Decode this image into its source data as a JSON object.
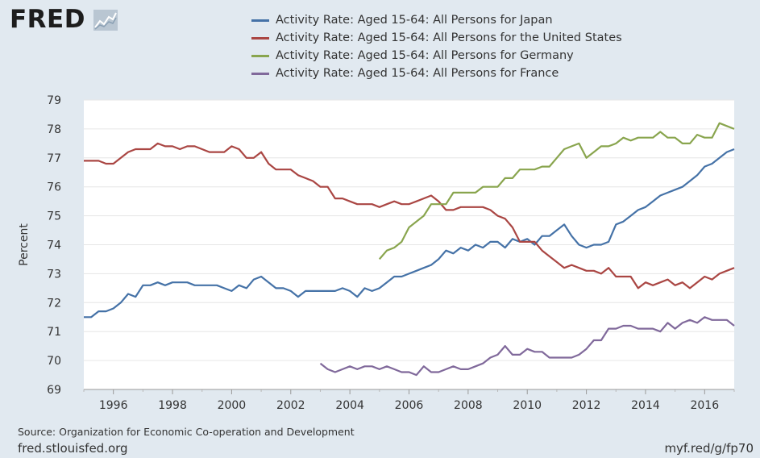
{
  "brand": {
    "name": "FRED",
    "icon": "line-chart-icon"
  },
  "footer": {
    "source": "Source: Organization for Economic Co-operation and Development",
    "site": "fred.stlouisfed.org",
    "shortlink": "myf.red/g/fp70"
  },
  "chart_data": {
    "type": "line",
    "title": "",
    "xlabel": "",
    "ylabel": "Percent",
    "xlim": [
      1995.0,
      2017.0
    ],
    "ylim": [
      69,
      79
    ],
    "yticks": [
      69,
      70,
      71,
      72,
      73,
      74,
      75,
      76,
      77,
      78,
      79
    ],
    "xticks": [
      1996,
      1998,
      2000,
      2002,
      2004,
      2006,
      2008,
      2010,
      2012,
      2014,
      2016
    ],
    "grid": true,
    "legend_position": "top",
    "series": [
      {
        "name": "Activity Rate: Aged 15-64: All Persons for Japan",
        "color": "#4572a7",
        "start": 1995.0,
        "step": 0.25,
        "values": [
          71.5,
          71.5,
          71.7,
          71.7,
          71.8,
          72.0,
          72.3,
          72.2,
          72.6,
          72.6,
          72.7,
          72.6,
          72.7,
          72.7,
          72.7,
          72.6,
          72.6,
          72.6,
          72.6,
          72.5,
          72.4,
          72.6,
          72.5,
          72.8,
          72.9,
          72.7,
          72.5,
          72.5,
          72.4,
          72.2,
          72.4,
          72.4,
          72.4,
          72.4,
          72.4,
          72.5,
          72.4,
          72.2,
          72.5,
          72.4,
          72.5,
          72.7,
          72.9,
          72.9,
          73.0,
          73.1,
          73.2,
          73.3,
          73.5,
          73.8,
          73.7,
          73.9,
          73.8,
          74.0,
          73.9,
          74.1,
          74.1,
          73.9,
          74.2,
          74.1,
          74.2,
          74.0,
          74.3,
          74.3,
          74.5,
          74.7,
          74.3,
          74.0,
          73.9,
          74.0,
          74.0,
          74.1,
          74.7,
          74.8,
          75.0,
          75.2,
          75.3,
          75.5,
          75.7,
          75.8,
          75.9,
          76.0,
          76.2,
          76.4,
          76.7,
          76.8,
          77.0,
          77.2,
          77.3
        ]
      },
      {
        "name": "Activity Rate: Aged 15-64: All Persons for the United States",
        "color": "#aa4643",
        "start": 1995.0,
        "step": 0.25,
        "values": [
          76.9,
          76.9,
          76.9,
          76.8,
          76.8,
          77.0,
          77.2,
          77.3,
          77.3,
          77.3,
          77.5,
          77.4,
          77.4,
          77.3,
          77.4,
          77.4,
          77.3,
          77.2,
          77.2,
          77.2,
          77.4,
          77.3,
          77.0,
          77.0,
          77.2,
          76.8,
          76.6,
          76.6,
          76.6,
          76.4,
          76.3,
          76.2,
          76.0,
          76.0,
          75.6,
          75.6,
          75.5,
          75.4,
          75.4,
          75.4,
          75.3,
          75.4,
          75.5,
          75.4,
          75.4,
          75.5,
          75.6,
          75.7,
          75.5,
          75.2,
          75.2,
          75.3,
          75.3,
          75.3,
          75.3,
          75.2,
          75.0,
          74.9,
          74.6,
          74.1,
          74.1,
          74.1,
          73.8,
          73.6,
          73.4,
          73.2,
          73.3,
          73.2,
          73.1,
          73.1,
          73.0,
          73.2,
          72.9,
          72.9,
          72.9,
          72.5,
          72.7,
          72.6,
          72.7,
          72.8,
          72.6,
          72.7,
          72.5,
          72.7,
          72.9,
          72.8,
          73.0,
          73.1,
          73.2
        ]
      },
      {
        "name": "Activity Rate: Aged 15-64: All Persons for Germany",
        "color": "#89a54e",
        "start": 2005.0,
        "step": 0.25,
        "values": [
          73.5,
          73.8,
          73.9,
          74.1,
          74.6,
          74.8,
          75.0,
          75.4,
          75.4,
          75.4,
          75.8,
          75.8,
          75.8,
          75.8,
          76.0,
          76.0,
          76.0,
          76.3,
          76.3,
          76.6,
          76.6,
          76.6,
          76.7,
          76.7,
          77.0,
          77.3,
          77.4,
          77.5,
          77.0,
          77.2,
          77.4,
          77.4,
          77.5,
          77.7,
          77.6,
          77.7,
          77.7,
          77.7,
          77.9,
          77.7,
          77.7,
          77.5,
          77.5,
          77.8,
          77.7,
          77.7,
          78.2,
          78.1,
          78.0
        ]
      },
      {
        "name": "Activity Rate: Aged 15-64: All Persons for France",
        "color": "#80699b",
        "start": 2003.0,
        "step": 0.25,
        "values": [
          69.9,
          69.7,
          69.6,
          69.7,
          69.8,
          69.7,
          69.8,
          69.8,
          69.7,
          69.8,
          69.7,
          69.6,
          69.6,
          69.5,
          69.8,
          69.6,
          69.6,
          69.7,
          69.8,
          69.7,
          69.7,
          69.8,
          69.9,
          70.1,
          70.2,
          70.5,
          70.2,
          70.2,
          70.4,
          70.3,
          70.3,
          70.1,
          70.1,
          70.1,
          70.1,
          70.2,
          70.4,
          70.7,
          70.7,
          71.1,
          71.1,
          71.2,
          71.2,
          71.1,
          71.1,
          71.1,
          71.0,
          71.3,
          71.1,
          71.3,
          71.4,
          71.3,
          71.5,
          71.4,
          71.4,
          71.4,
          71.2
        ]
      }
    ]
  }
}
